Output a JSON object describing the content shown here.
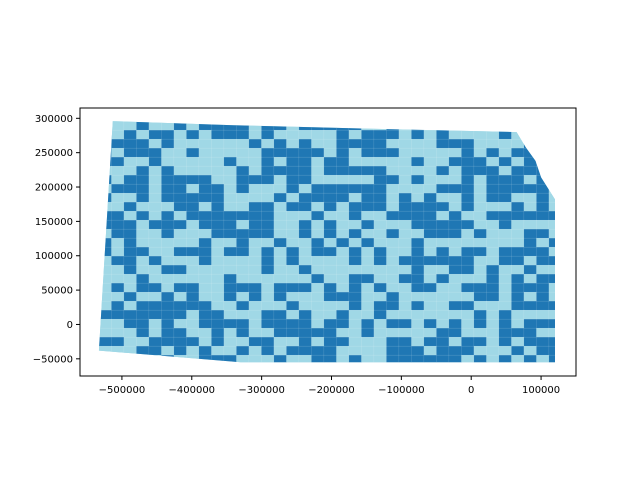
{
  "chart_data": {
    "type": "map",
    "title": "",
    "xlabel": "",
    "ylabel": "",
    "xlim": [
      -560000,
      150000
    ],
    "ylim": [
      -75000,
      315000
    ],
    "x_ticks": [
      -500000,
      -400000,
      -300000,
      -200000,
      -100000,
      0,
      100000
    ],
    "x_tick_labels": [
      "−500000",
      "−400000",
      "−300000",
      "−200000",
      "−100000",
      "0",
      "100000"
    ],
    "y_ticks": [
      -50000,
      0,
      50000,
      100000,
      150000,
      200000,
      250000,
      300000
    ],
    "y_tick_labels": [
      "−50000",
      "0",
      "50000",
      "100000",
      "150000",
      "200000",
      "250000",
      "300000"
    ],
    "grid": false,
    "legend": "none",
    "colors": {
      "light_region": "#a0d8e6",
      "dark_region": "#1f77b4",
      "axes": "#000000"
    },
    "state_outline": [
      [
        -513000,
        296000
      ],
      [
        -340000,
        290000
      ],
      [
        -150000,
        285000
      ],
      [
        65000,
        280000
      ],
      [
        78000,
        258000
      ],
      [
        92000,
        238000
      ],
      [
        100000,
        214000
      ],
      [
        115000,
        190000
      ],
      [
        120000,
        182000
      ],
      [
        120000,
        -55000
      ],
      [
        -330000,
        -55000
      ],
      [
        -533000,
        -38000
      ]
    ]
  }
}
